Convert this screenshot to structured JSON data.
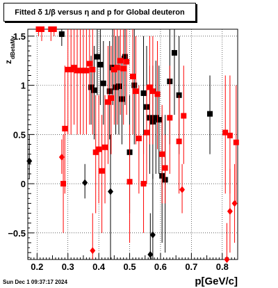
{
  "header": {
    "title": "Fitted δ 1/β versus η and p for Global deuteron"
  },
  "footer": {
    "date": "Sun Dec  1 09:37:17 2024"
  },
  "chart_data": {
    "type": "scatter",
    "title": "Fitted δ 1/β versus η and p for Global deuteron",
    "xlabel": "p[GeV/c]",
    "ylabel": "z_{dBetaMv}",
    "xlim": [
      0.17,
      0.85
    ],
    "ylim": [
      -0.77,
      1.57
    ],
    "x_ticks": [
      0.2,
      0.3,
      0.4,
      0.5,
      0.6,
      0.7,
      0.8
    ],
    "x_tick_labels": [
      "0.2",
      "0.3",
      "0.4",
      "0.5",
      "0.6",
      "0.7",
      "0.8"
    ],
    "y_ticks": [
      -0.5,
      0,
      0.5,
      1,
      1.5
    ],
    "y_tick_labels": [
      "−0.5",
      "0",
      "0.5",
      "1",
      "1.5"
    ],
    "grid": true,
    "colors": {
      "black_series": "#000000",
      "red_series": "#ff0000"
    },
    "series": [
      {
        "color": "#000000",
        "marker": "square",
        "points": [
          {
            "x": 0.28,
            "y": 1.52,
            "lo": 1.4,
            "hi": 1.57
          },
          {
            "x": 0.375,
            "y": 0.98,
            "lo": 0.6,
            "hi": 1.3
          },
          {
            "x": 0.385,
            "y": 0.95,
            "lo": 0.45,
            "hi": 1.4
          },
          {
            "x": 0.395,
            "y": 1.29,
            "lo": 0.9,
            "hi": 1.57
          },
          {
            "x": 0.405,
            "y": 1.21,
            "lo": 0.8,
            "hi": 1.57
          },
          {
            "x": 0.415,
            "y": 1.02,
            "lo": 0.6,
            "hi": 1.45
          },
          {
            "x": 0.435,
            "y": 0.94,
            "lo": 0.45,
            "hi": 1.45
          },
          {
            "x": 0.445,
            "y": 1.18,
            "lo": 0.8,
            "hi": 1.57
          },
          {
            "x": 0.455,
            "y": 0.98,
            "lo": 0.5,
            "hi": 1.5
          },
          {
            "x": 0.465,
            "y": 0.99,
            "lo": 0.5,
            "hi": 1.5
          },
          {
            "x": 0.475,
            "y": 0.86,
            "lo": 0.4,
            "hi": 1.3
          },
          {
            "x": 0.485,
            "y": 1.29,
            "lo": 0.8,
            "hi": 1.57
          },
          {
            "x": 0.5,
            "y": 0.32,
            "lo": -0.3,
            "hi": 0.9
          },
          {
            "x": 0.515,
            "y": 1.0,
            "lo": 0.4,
            "hi": 1.57
          },
          {
            "x": 0.545,
            "y": 0.92,
            "lo": 0.3,
            "hi": 1.5
          },
          {
            "x": 0.555,
            "y": 0.78,
            "lo": 0.2,
            "hi": 1.4
          },
          {
            "x": 0.565,
            "y": 0.67,
            "lo": 0.1,
            "hi": 1.2
          },
          {
            "x": 0.575,
            "y": 0.63,
            "lo": 0.05,
            "hi": 1.2
          },
          {
            "x": 0.585,
            "y": 0.67,
            "lo": 0.1,
            "hi": 1.25
          },
          {
            "x": 0.595,
            "y": 0.65,
            "lo": 0.1,
            "hi": 1.2
          },
          {
            "x": 0.605,
            "y": 0.08,
            "lo": -0.6,
            "hi": 0.7
          },
          {
            "x": 0.615,
            "y": 0.04,
            "lo": -0.7,
            "hi": 0.7
          },
          {
            "x": 0.63,
            "y": 1.04,
            "lo": 0.4,
            "hi": 1.57
          },
          {
            "x": 0.645,
            "y": 1.33,
            "lo": 0.7,
            "hi": 1.57
          },
          {
            "x": 0.66,
            "y": 0.9,
            "lo": 0.3,
            "hi": 1.5
          },
          {
            "x": 0.76,
            "y": 0.71,
            "lo": 0.3,
            "hi": 1.1
          }
        ]
      },
      {
        "color": "#000000",
        "marker": "diamond",
        "points": [
          {
            "x": 0.175,
            "y": 0.23,
            "lo": 0.05,
            "hi": 0.5
          },
          {
            "x": 0.355,
            "y": 0.01,
            "lo": -0.15,
            "hi": 0.2
          },
          {
            "x": 0.438,
            "y": -0.08,
            "lo": -0.77,
            "hi": 0.5
          },
          {
            "x": 0.567,
            "y": -0.72,
            "lo": -0.77,
            "hi": -0.3
          },
          {
            "x": 0.575,
            "y": -0.52,
            "lo": -0.77,
            "hi": 0.1
          }
        ]
      },
      {
        "color": "#ff0000",
        "marker": "square",
        "points": [
          {
            "x": 0.205,
            "y": 1.57,
            "lo": 1.5,
            "hi": 1.57
          },
          {
            "x": 0.215,
            "y": 1.57,
            "lo": 1.45,
            "hi": 1.57
          },
          {
            "x": 0.245,
            "y": 1.57,
            "lo": 1.45,
            "hi": 1.57
          },
          {
            "x": 0.255,
            "y": 1.57,
            "lo": 1.5,
            "hi": 1.57
          },
          {
            "x": 0.285,
            "y": 0.0,
            "lo": -0.5,
            "hi": 0.5
          },
          {
            "x": 0.29,
            "y": 0.56,
            "lo": -0.1,
            "hi": 1.2
          },
          {
            "x": 0.3,
            "y": 1.16,
            "lo": 0.5,
            "hi": 1.57
          },
          {
            "x": 0.31,
            "y": 1.16,
            "lo": 0.5,
            "hi": 1.57
          },
          {
            "x": 0.32,
            "y": 1.18,
            "lo": 0.6,
            "hi": 1.57
          },
          {
            "x": 0.33,
            "y": 1.15,
            "lo": 0.5,
            "hi": 1.57
          },
          {
            "x": 0.34,
            "y": 1.15,
            "lo": 0.5,
            "hi": 1.57
          },
          {
            "x": 0.35,
            "y": 1.15,
            "lo": 0.5,
            "hi": 1.57
          },
          {
            "x": 0.36,
            "y": 1.15,
            "lo": 0.5,
            "hi": 1.57
          },
          {
            "x": 0.37,
            "y": 1.22,
            "lo": 0.6,
            "hi": 1.57
          },
          {
            "x": 0.38,
            "y": 1.16,
            "lo": 0.5,
            "hi": 1.57
          },
          {
            "x": 0.39,
            "y": 0.32,
            "lo": -0.3,
            "hi": 0.9
          },
          {
            "x": 0.4,
            "y": 0.35,
            "lo": -0.2,
            "hi": 0.9
          },
          {
            "x": 0.41,
            "y": 0.13,
            "lo": -0.5,
            "hi": 0.7
          },
          {
            "x": 0.42,
            "y": 0.37,
            "lo": -0.2,
            "hi": 0.9
          },
          {
            "x": 0.43,
            "y": 0.83,
            "lo": 0.2,
            "hi": 1.4
          },
          {
            "x": 0.44,
            "y": 0.87,
            "lo": 0.3,
            "hi": 1.4
          },
          {
            "x": 0.45,
            "y": 1.16,
            "lo": 0.6,
            "hi": 1.57
          },
          {
            "x": 0.46,
            "y": 1.18,
            "lo": 0.6,
            "hi": 1.57
          },
          {
            "x": 0.47,
            "y": 1.25,
            "lo": 0.7,
            "hi": 1.57
          },
          {
            "x": 0.48,
            "y": 1.17,
            "lo": 0.6,
            "hi": 1.57
          },
          {
            "x": 0.49,
            "y": 1.24,
            "lo": 0.7,
            "hi": 1.57
          },
          {
            "x": 0.5,
            "y": 0.02,
            "lo": -0.6,
            "hi": 0.6
          },
          {
            "x": 0.51,
            "y": 1.09,
            "lo": 0.5,
            "hi": 1.57
          },
          {
            "x": 0.52,
            "y": 0.94,
            "lo": 0.4,
            "hi": 1.5
          },
          {
            "x": 0.53,
            "y": 0.46,
            "lo": -0.1,
            "hi": 1.0
          },
          {
            "x": 0.545,
            "y": 0.0,
            "lo": -0.5,
            "hi": 0.5
          },
          {
            "x": 0.555,
            "y": 0.52,
            "lo": 0.0,
            "hi": 1.0
          },
          {
            "x": 0.565,
            "y": 0.98,
            "lo": 0.4,
            "hi": 1.5
          },
          {
            "x": 0.575,
            "y": 0.94,
            "lo": 0.4,
            "hi": 1.5
          },
          {
            "x": 0.59,
            "y": 0.91,
            "lo": 0.35,
            "hi": 1.45
          },
          {
            "x": 0.605,
            "y": 0.3,
            "lo": -0.2,
            "hi": 0.8
          },
          {
            "x": 0.615,
            "y": 0.16,
            "lo": -0.2,
            "hi": 0.5
          },
          {
            "x": 0.63,
            "y": 0.67,
            "lo": 0.1,
            "hi": 1.2
          },
          {
            "x": 0.66,
            "y": 0.43,
            "lo": -0.1,
            "hi": 0.9
          },
          {
            "x": 0.675,
            "y": 0.69,
            "lo": 0.2,
            "hi": 1.2
          },
          {
            "x": 0.81,
            "y": 0.52,
            "lo": -0.1,
            "hi": 1.1
          },
          {
            "x": 0.825,
            "y": 0.49,
            "lo": -0.1,
            "hi": 1.1
          },
          {
            "x": 0.845,
            "y": 0.42,
            "lo": -0.2,
            "hi": 1.0
          }
        ]
      },
      {
        "color": "#ff0000",
        "marker": "diamond",
        "points": [
          {
            "x": 0.28,
            "y": 0.27,
            "lo": 0.1,
            "hi": 0.45
          },
          {
            "x": 0.38,
            "y": -0.68,
            "lo": -0.77,
            "hi": -0.3
          },
          {
            "x": 0.67,
            "y": -0.06,
            "lo": -0.3,
            "hi": 0.2
          },
          {
            "x": 0.815,
            "y": -0.77,
            "lo": -0.77,
            "hi": -0.4
          },
          {
            "x": 0.825,
            "y": -0.28,
            "lo": -0.7,
            "hi": 0.15
          },
          {
            "x": 0.84,
            "y": -0.2,
            "lo": -0.6,
            "hi": 0.2
          }
        ]
      }
    ]
  }
}
